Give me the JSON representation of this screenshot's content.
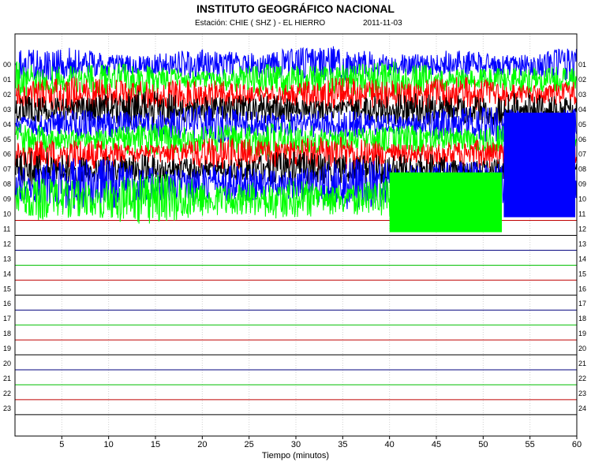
{
  "header": {
    "title": "INSTITUTO GEOGRÁFICO NACIONAL",
    "station": "Estación:  CHIE ( SHZ ) - EL HIERRO",
    "date": "2011-11-03"
  },
  "colors": {
    "trace_cycle": [
      "#0000ff",
      "#00ff00",
      "#ff0000",
      "#000000"
    ],
    "baseline_cycle": [
      "#00007f",
      "#00bf00",
      "#bf0000",
      "#000000"
    ],
    "frame": "#000000",
    "grid": "#d0d0d0"
  },
  "chart_data": {
    "type": "line",
    "title": "INSTITUTO GEOGRÁFICO NACIONAL",
    "subtitle": "Estación:  CHIE ( SHZ ) - EL HIERRO",
    "date": "2011-11-03",
    "xlabel": "Tiempo (minutos)",
    "ylabel": "",
    "xlim": [
      0,
      60
    ],
    "x_ticks": [
      5,
      10,
      15,
      20,
      25,
      30,
      35,
      40,
      45,
      50,
      55,
      60
    ],
    "grid": "vertical dotted",
    "left_labels": [
      "00",
      "01",
      "02",
      "03",
      "04",
      "05",
      "06",
      "07",
      "08",
      "09",
      "10",
      "11",
      "12",
      "13",
      "14",
      "15",
      "16",
      "17",
      "18",
      "19",
      "20",
      "21",
      "22",
      "23"
    ],
    "right_labels": [
      "01",
      "02",
      "03",
      "04",
      "05",
      "06",
      "07",
      "08",
      "09",
      "10",
      "11",
      "12",
      "13",
      "14",
      "15",
      "16",
      "17",
      "18",
      "19",
      "20",
      "21",
      "22",
      "23",
      "24"
    ],
    "rows": [
      {
        "label": "00",
        "color": "#0000ff",
        "amplitude": "high",
        "active_until_min": 60
      },
      {
        "label": "01",
        "color": "#00ff00",
        "amplitude": "high",
        "active_until_min": 60
      },
      {
        "label": "02",
        "color": "#ff0000",
        "amplitude": "high",
        "active_until_min": 60
      },
      {
        "label": "03",
        "color": "#000000",
        "amplitude": "high",
        "active_until_min": 60
      },
      {
        "label": "04",
        "color": "#0000ff",
        "amplitude": "high",
        "active_until_min": 60
      },
      {
        "label": "05",
        "color": "#00ff00",
        "amplitude": "high",
        "active_until_min": 60
      },
      {
        "label": "06",
        "color": "#ff0000",
        "amplitude": "high",
        "active_until_min": 60
      },
      {
        "label": "07",
        "color": "#000000",
        "amplitude": "high",
        "active_until_min": 60
      },
      {
        "label": "08",
        "color": "#0000ff",
        "amplitude": "high",
        "active_until_min": 60
      },
      {
        "label": "09",
        "color": "#00ff00",
        "amplitude": "high",
        "active_until_min": 52
      },
      {
        "label": "10",
        "color": "#ff0000",
        "amplitude": "flat",
        "active_until_min": 60
      },
      {
        "label": "11",
        "color": "#000000",
        "amplitude": "flat",
        "active_until_min": 60
      },
      {
        "label": "12",
        "color": "#0000ff",
        "amplitude": "flat",
        "active_until_min": 60
      },
      {
        "label": "13",
        "color": "#00ff00",
        "amplitude": "flat",
        "active_until_min": 60
      },
      {
        "label": "14",
        "color": "#ff0000",
        "amplitude": "flat",
        "active_until_min": 60
      },
      {
        "label": "15",
        "color": "#000000",
        "amplitude": "flat",
        "active_until_min": 60
      },
      {
        "label": "16",
        "color": "#0000ff",
        "amplitude": "flat",
        "active_until_min": 60
      },
      {
        "label": "17",
        "color": "#00ff00",
        "amplitude": "flat",
        "active_until_min": 60
      },
      {
        "label": "18",
        "color": "#ff0000",
        "amplitude": "flat",
        "active_until_min": 60
      },
      {
        "label": "19",
        "color": "#000000",
        "amplitude": "flat",
        "active_until_min": 60
      },
      {
        "label": "20",
        "color": "#0000ff",
        "amplitude": "flat",
        "active_until_min": 60
      },
      {
        "label": "21",
        "color": "#00ff00",
        "amplitude": "flat",
        "active_until_min": 60
      },
      {
        "label": "22",
        "color": "#ff0000",
        "amplitude": "flat",
        "active_until_min": 60
      },
      {
        "label": "23",
        "color": "#000000",
        "amplitude": "flat",
        "active_until_min": 60
      }
    ]
  }
}
